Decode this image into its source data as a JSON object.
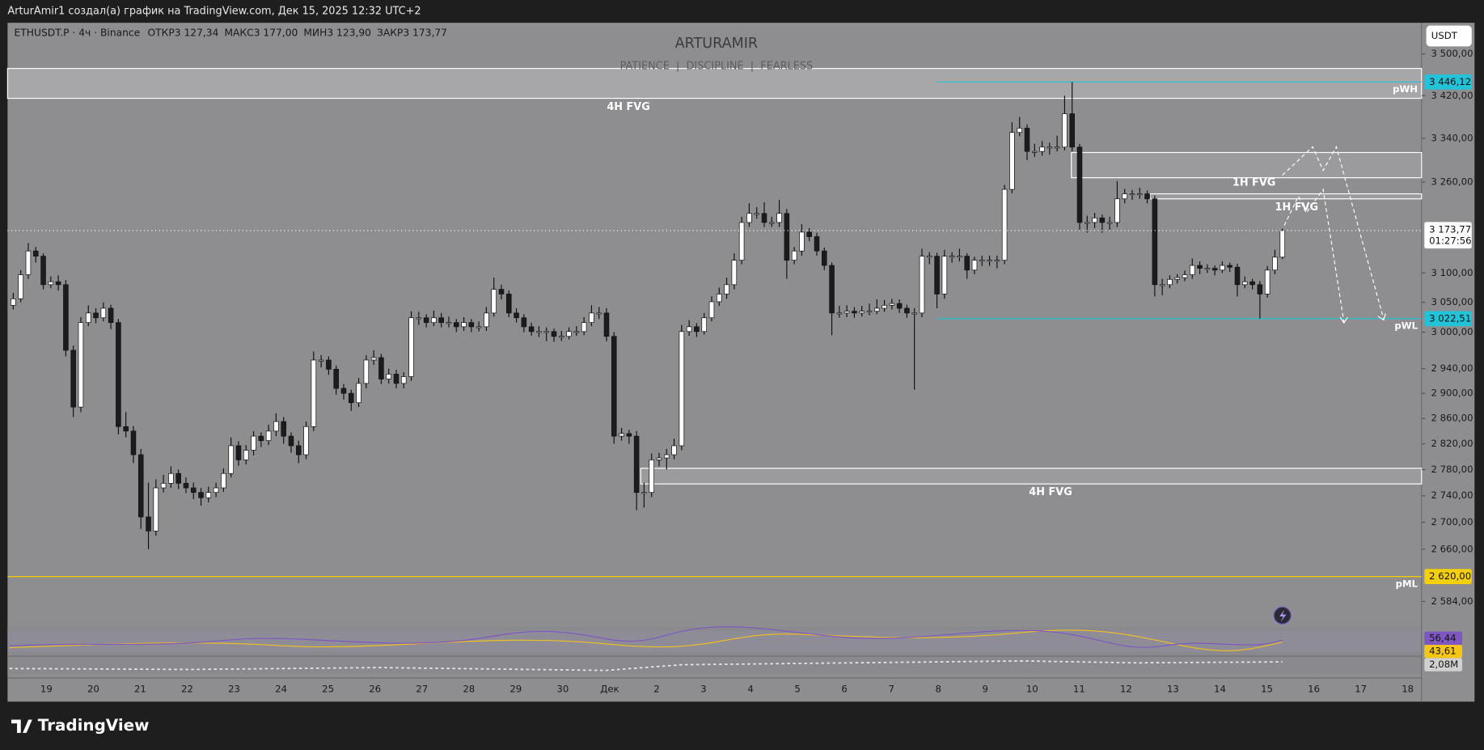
{
  "header": {
    "caption": "ArturAmir1 создал(а) график на TradingView.com, Дек 15, 2025 12:32 UTC+2",
    "symbol": "ETHUSDT.P · 4ч · Binance",
    "stats": [
      {
        "name": "ОТКР",
        "value": "3 127,34"
      },
      {
        "name": "МАКС",
        "value": "3 177,00"
      },
      {
        "name": "МИН",
        "value": "3 123,90"
      },
      {
        "name": "ЗАКР",
        "value": "3 173,77"
      }
    ],
    "watermark": "ARTURAMIR",
    "motto": "PATIENCE  |  DISCIPLINE  |  FEARLESS",
    "currency": "USDT"
  },
  "footer": {
    "logo": "TradingView"
  },
  "chart_data": {
    "type": "candlestick",
    "log_scale": true,
    "grid": false,
    "up_color": "#ffffff",
    "down_color": "#1c1c20",
    "ylim": [
      2548,
      3561
    ],
    "yticks": [
      {
        "value": 3500,
        "label": "3 500,00"
      },
      {
        "value": 3420,
        "label": "3 420,00"
      },
      {
        "value": 3340,
        "label": "3 340,00"
      },
      {
        "value": 3260,
        "label": "3 260,00"
      },
      {
        "value": 3100,
        "label": "3 100,00"
      },
      {
        "value": 3050,
        "label": "3 050,00"
      },
      {
        "value": 3000,
        "label": "3 000,00"
      },
      {
        "value": 2940,
        "label": "2 940,00"
      },
      {
        "value": 2900,
        "label": "2 900,00"
      },
      {
        "value": 2860,
        "label": "2 860,00"
      },
      {
        "value": 2820,
        "label": "2 820,00"
      },
      {
        "value": 2780,
        "label": "2 780,00"
      },
      {
        "value": 2740,
        "label": "2 740,00"
      },
      {
        "value": 2700,
        "label": "2 700,00"
      },
      {
        "value": 2660,
        "label": "2 660,00"
      },
      {
        "value": 2584,
        "label": "2 584,00"
      }
    ],
    "x_labels": [
      "19",
      "20",
      "21",
      "22",
      "23",
      "24",
      "25",
      "26",
      "27",
      "28",
      "29",
      "30",
      "Дек",
      "2",
      "3",
      "4",
      "5",
      "6",
      "7",
      "8",
      "9",
      "10",
      "11",
      "12",
      "13",
      "14",
      "15",
      "16",
      "17",
      "18"
    ],
    "zones": [
      {
        "label": "4H FVG",
        "range": [
          3415,
          3472
        ]
      },
      {
        "label": "1H FVG",
        "range": [
          3268,
          3314
        ]
      },
      {
        "label": "1H FVG",
        "range": [
          3230,
          3239
        ]
      },
      {
        "label": "4H FVG",
        "range": [
          2758,
          2782
        ]
      }
    ],
    "levels": [
      {
        "name": "pWH",
        "value": 3446.12,
        "label": "3 446,12",
        "color": "#22c3d6"
      },
      {
        "name": "pWL",
        "value": 3022.51,
        "label": "3 022,51",
        "color": "#22c3d6"
      },
      {
        "name": "pML",
        "value": 2620,
        "label": "2 620,00",
        "color": "#f5d000"
      }
    ],
    "last": {
      "value": 3173.77,
      "label": "3 173,77",
      "countdown": "01:27:56"
    },
    "indicators": [
      {
        "value": 56.44,
        "label": "56,44",
        "color": "#7e57c2"
      },
      {
        "value": 43.61,
        "label": "43,61",
        "color": "#f5c518"
      },
      {
        "label": "2,08M",
        "value": 2080000,
        "color": "#d0d0d0"
      }
    ],
    "ohlc": [
      [
        3045,
        3066,
        3038,
        3056
      ],
      [
        3056,
        3105,
        3050,
        3097
      ],
      [
        3097,
        3152,
        3090,
        3138
      ],
      [
        3138,
        3145,
        3118,
        3129
      ],
      [
        3129,
        3134,
        3072,
        3080
      ],
      [
        3080,
        3094,
        3074,
        3085
      ],
      [
        3085,
        3096,
        3070,
        3080
      ],
      [
        3080,
        3088,
        2960,
        2970
      ],
      [
        2970,
        2978,
        2862,
        2878
      ],
      [
        2878,
        3025,
        2870,
        3016
      ],
      [
        3016,
        3045,
        3010,
        3032
      ],
      [
        3032,
        3040,
        3015,
        3024
      ],
      [
        3024,
        3050,
        3018,
        3040
      ],
      [
        3040,
        3046,
        3005,
        3016
      ],
      [
        3016,
        3022,
        2835,
        2847
      ],
      [
        2847,
        2870,
        2830,
        2840
      ],
      [
        2840,
        2848,
        2790,
        2803
      ],
      [
        2803,
        2812,
        2690,
        2708
      ],
      [
        2708,
        2760,
        2660,
        2687
      ],
      [
        2687,
        2765,
        2680,
        2752
      ],
      [
        2752,
        2772,
        2745,
        2759
      ],
      [
        2759,
        2785,
        2752,
        2774
      ],
      [
        2774,
        2780,
        2750,
        2759
      ],
      [
        2759,
        2768,
        2744,
        2752
      ],
      [
        2752,
        2760,
        2735,
        2745
      ],
      [
        2745,
        2752,
        2725,
        2737
      ],
      [
        2737,
        2754,
        2730,
        2745
      ],
      [
        2745,
        2760,
        2738,
        2752
      ],
      [
        2752,
        2782,
        2746,
        2774
      ],
      [
        2774,
        2830,
        2768,
        2817
      ],
      [
        2817,
        2824,
        2786,
        2795
      ],
      [
        2795,
        2818,
        2788,
        2810
      ],
      [
        2810,
        2840,
        2802,
        2832
      ],
      [
        2832,
        2838,
        2815,
        2825
      ],
      [
        2825,
        2850,
        2818,
        2840
      ],
      [
        2840,
        2868,
        2832,
        2855
      ],
      [
        2855,
        2862,
        2820,
        2832
      ],
      [
        2832,
        2838,
        2806,
        2817
      ],
      [
        2817,
        2825,
        2790,
        2803
      ],
      [
        2803,
        2855,
        2796,
        2847
      ],
      [
        2847,
        2968,
        2840,
        2954
      ],
      [
        2954,
        2962,
        2942,
        2954
      ],
      [
        2954,
        2960,
        2930,
        2939
      ],
      [
        2939,
        2945,
        2898,
        2908
      ],
      [
        2908,
        2915,
        2890,
        2900
      ],
      [
        2900,
        2906,
        2872,
        2885
      ],
      [
        2885,
        2925,
        2878,
        2916
      ],
      [
        2916,
        2962,
        2908,
        2954
      ],
      [
        2954,
        2970,
        2946,
        2958
      ],
      [
        2958,
        2964,
        2915,
        2923
      ],
      [
        2923,
        2940,
        2916,
        2931
      ],
      [
        2931,
        2938,
        2908,
        2916
      ],
      [
        2916,
        2934,
        2908,
        2927
      ],
      [
        2927,
        3035,
        2920,
        3024
      ],
      [
        3024,
        3034,
        3012,
        3024
      ],
      [
        3024,
        3030,
        3008,
        3016
      ],
      [
        3016,
        3036,
        3010,
        3024
      ],
      [
        3024,
        3032,
        3008,
        3016
      ],
      [
        3016,
        3026,
        3008,
        3016
      ],
      [
        3016,
        3022,
        3000,
        3009
      ],
      [
        3009,
        3025,
        3002,
        3016
      ],
      [
        3016,
        3022,
        3000,
        3009
      ],
      [
        3009,
        3018,
        3001,
        3009
      ],
      [
        3009,
        3042,
        3002,
        3032
      ],
      [
        3032,
        3092,
        3026,
        3072
      ],
      [
        3072,
        3080,
        3055,
        3064
      ],
      [
        3064,
        3070,
        3025,
        3032
      ],
      [
        3032,
        3040,
        3016,
        3024
      ],
      [
        3024,
        3030,
        3000,
        3009
      ],
      [
        3009,
        3016,
        2994,
        3001
      ],
      [
        3001,
        3010,
        2992,
        3001
      ],
      [
        3001,
        3008,
        2985,
        3001
      ],
      [
        3001,
        3006,
        2984,
        2993
      ],
      [
        2993,
        3002,
        2985,
        2993
      ],
      [
        2993,
        3008,
        2988,
        3001
      ],
      [
        3001,
        3010,
        2994,
        3001
      ],
      [
        3001,
        3025,
        2995,
        3016
      ],
      [
        3016,
        3045,
        3010,
        3032
      ],
      [
        3032,
        3042,
        3022,
        3032
      ],
      [
        3032,
        3040,
        2985,
        2993
      ],
      [
        2993,
        3000,
        2820,
        2832
      ],
      [
        2832,
        2845,
        2825,
        2836
      ],
      [
        2836,
        2842,
        2820,
        2832
      ],
      [
        2832,
        2840,
        2718,
        2745
      ],
      [
        2745,
        2760,
        2722,
        2745
      ],
      [
        2745,
        2805,
        2738,
        2795
      ],
      [
        2795,
        2806,
        2785,
        2798
      ],
      [
        2798,
        2812,
        2780,
        2803
      ],
      [
        2803,
        2828,
        2796,
        2817
      ],
      [
        2817,
        3012,
        2810,
        3001
      ],
      [
        3001,
        3020,
        2994,
        3009
      ],
      [
        3009,
        3015,
        2992,
        3001
      ],
      [
        3001,
        3032,
        2996,
        3024
      ],
      [
        3024,
        3060,
        3018,
        3051
      ],
      [
        3051,
        3075,
        3044,
        3064
      ],
      [
        3064,
        3092,
        3056,
        3080
      ],
      [
        3080,
        3134,
        3072,
        3122
      ],
      [
        3122,
        3198,
        3115,
        3188
      ],
      [
        3188,
        3222,
        3180,
        3204
      ],
      [
        3204,
        3215,
        3195,
        3204
      ],
      [
        3204,
        3224,
        3180,
        3188
      ],
      [
        3188,
        3198,
        3180,
        3188
      ],
      [
        3188,
        3228,
        3180,
        3204
      ],
      [
        3204,
        3212,
        3090,
        3122
      ],
      [
        3122,
        3145,
        3115,
        3138
      ],
      [
        3138,
        3185,
        3130,
        3171
      ],
      [
        3171,
        3178,
        3155,
        3163
      ],
      [
        3163,
        3170,
        3130,
        3138
      ],
      [
        3138,
        3144,
        3105,
        3113
      ],
      [
        3113,
        3118,
        2995,
        3032
      ],
      [
        3032,
        3044,
        3024,
        3032
      ],
      [
        3032,
        3045,
        3025,
        3035
      ],
      [
        3035,
        3042,
        3024,
        3032
      ],
      [
        3032,
        3044,
        3026,
        3035
      ],
      [
        3035,
        3048,
        3028,
        3035
      ],
      [
        3035,
        3055,
        3030,
        3040
      ],
      [
        3040,
        3054,
        3034,
        3045
      ],
      [
        3045,
        3056,
        3038,
        3048
      ],
      [
        3048,
        3055,
        3032,
        3040
      ],
      [
        3040,
        3046,
        3024,
        3032
      ],
      [
        3032,
        3040,
        2906,
        3032
      ],
      [
        3032,
        3142,
        3025,
        3129
      ],
      [
        3129,
        3136,
        3115,
        3129
      ],
      [
        3129,
        3135,
        3040,
        3064
      ],
      [
        3064,
        3140,
        3056,
        3129
      ],
      [
        3129,
        3136,
        3118,
        3129
      ],
      [
        3129,
        3142,
        3120,
        3129
      ],
      [
        3129,
        3134,
        3090,
        3105
      ],
      [
        3105,
        3128,
        3098,
        3122
      ],
      [
        3122,
        3130,
        3112,
        3122
      ],
      [
        3122,
        3130,
        3112,
        3122
      ],
      [
        3122,
        3130,
        3108,
        3122
      ],
      [
        3122,
        3255,
        3115,
        3247
      ],
      [
        3247,
        3370,
        3240,
        3351
      ],
      [
        3351,
        3380,
        3344,
        3359
      ],
      [
        3359,
        3366,
        3300,
        3316
      ],
      [
        3316,
        3330,
        3306,
        3316
      ],
      [
        3316,
        3335,
        3308,
        3324
      ],
      [
        3324,
        3332,
        3310,
        3324
      ],
      [
        3324,
        3345,
        3316,
        3324
      ],
      [
        3324,
        3420,
        3318,
        3386
      ],
      [
        3386,
        3446.12,
        3316,
        3324
      ],
      [
        3324,
        3330,
        3175,
        3188
      ],
      [
        3188,
        3200,
        3170,
        3188
      ],
      [
        3188,
        3205,
        3178,
        3196
      ],
      [
        3196,
        3202,
        3170,
        3188
      ],
      [
        3188,
        3198,
        3175,
        3188
      ],
      [
        3188,
        3262,
        3180,
        3230
      ],
      [
        3230,
        3248,
        3222,
        3239
      ],
      [
        3239,
        3246,
        3228,
        3239
      ],
      [
        3239,
        3250,
        3230,
        3239
      ],
      [
        3239,
        3245,
        3222,
        3230
      ],
      [
        3230,
        3236,
        3060,
        3080
      ],
      [
        3080,
        3090,
        3062,
        3080
      ],
      [
        3080,
        3096,
        3074,
        3089
      ],
      [
        3089,
        3098,
        3082,
        3092
      ],
      [
        3092,
        3104,
        3086,
        3097
      ],
      [
        3097,
        3125,
        3090,
        3113
      ],
      [
        3113,
        3120,
        3098,
        3108
      ],
      [
        3108,
        3115,
        3100,
        3108
      ],
      [
        3108,
        3113,
        3096,
        3105
      ],
      [
        3105,
        3120,
        3100,
        3113
      ],
      [
        3113,
        3118,
        3102,
        3110
      ],
      [
        3110,
        3116,
        3060,
        3080
      ],
      [
        3080,
        3094,
        3074,
        3085
      ],
      [
        3085,
        3090,
        3072,
        3080
      ],
      [
        3080,
        3086,
        3022.51,
        3064
      ],
      [
        3064,
        3112,
        3058,
        3105
      ],
      [
        3105,
        3140,
        3098,
        3127.34
      ],
      [
        3127.34,
        3177,
        3123.9,
        3173.77
      ]
    ]
  }
}
